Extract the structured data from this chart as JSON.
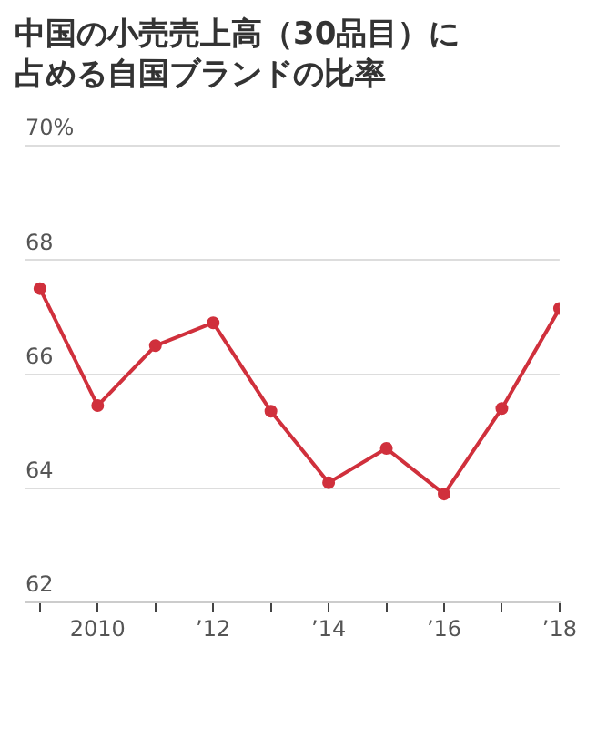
{
  "chart_data": {
    "type": "line",
    "title": "中国の小売売上高（30品目）に占める自国ブランドの比率",
    "x": [
      2009,
      2010,
      2011,
      2012,
      2013,
      2014,
      2015,
      2016,
      2017,
      2018
    ],
    "series": [
      {
        "color": "#d0303c",
        "values": [
          67.5,
          65.45,
          66.5,
          66.9,
          65.35,
          64.1,
          64.7,
          63.9,
          65.4,
          67.15
        ]
      }
    ],
    "xlim": [
      2008.75,
      2018
    ],
    "xticks": [
      {
        "value": 2009,
        "label": null
      },
      {
        "value": 2010,
        "label": "2010"
      },
      {
        "value": 2011,
        "label": null
      },
      {
        "value": 2012,
        "label": "’12"
      },
      {
        "value": 2013,
        "label": null
      },
      {
        "value": 2014,
        "label": "’14"
      },
      {
        "value": 2015,
        "label": null
      },
      {
        "value": 2016,
        "label": "’16"
      },
      {
        "value": 2017,
        "label": null
      },
      {
        "value": 2018,
        "label": "’18"
      }
    ],
    "ylim": [
      62,
      70
    ],
    "yticks": [
      62,
      64,
      66,
      68,
      {
        "value": 70,
        "label": "70%"
      }
    ],
    "grid": "y",
    "marker": "circle",
    "line_style": "solid"
  }
}
